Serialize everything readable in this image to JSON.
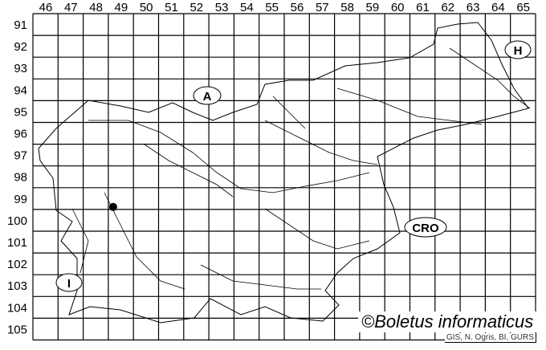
{
  "map": {
    "column_labels": [
      "46",
      "47",
      "48",
      "49",
      "50",
      "51",
      "52",
      "53",
      "54",
      "55",
      "56",
      "57",
      "58",
      "59",
      "60",
      "61",
      "62",
      "63",
      "64",
      "65"
    ],
    "row_labels": [
      "91",
      "92",
      "93",
      "94",
      "95",
      "96",
      "97",
      "98",
      "99",
      "100",
      "101",
      "102",
      "103",
      "104",
      "105"
    ],
    "country_labels": {
      "austria": "A",
      "hungary": "H",
      "croatia": "CRO",
      "italy": "I"
    },
    "occurrence_points": [
      {
        "column": "49",
        "row": "99"
      }
    ]
  },
  "footer": {
    "copyright": "©Boletus informaticus",
    "credit": "GIS, N. Ogris, BI, GURS"
  }
}
